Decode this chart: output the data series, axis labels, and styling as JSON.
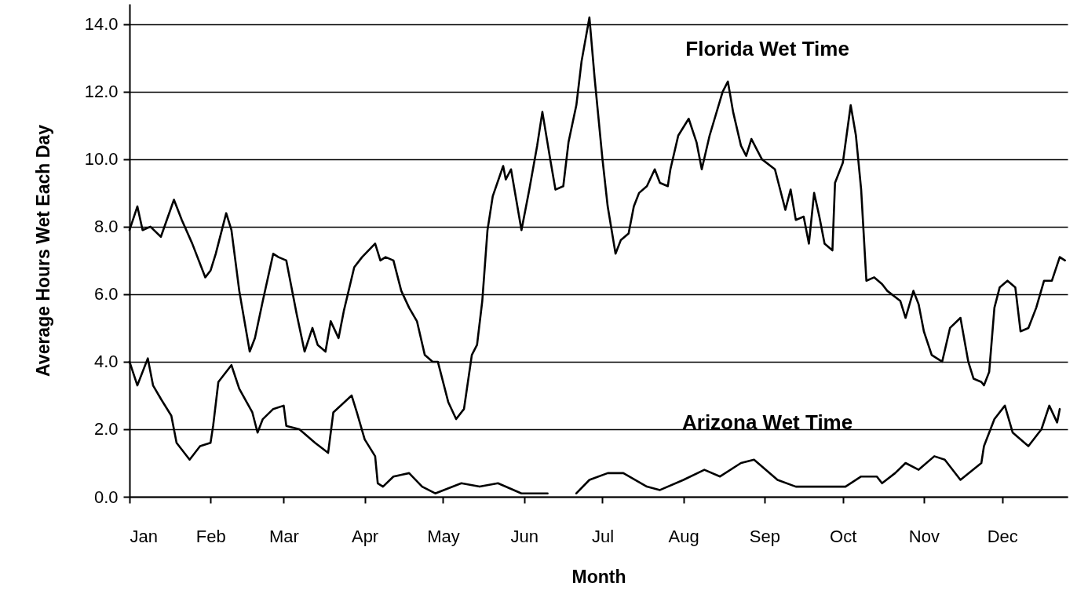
{
  "chart_data": {
    "type": "line",
    "xlabel": "Month",
    "ylabel": "Average Hours Wet Each Day",
    "xlim": [
      "--01-01",
      "--12-26"
    ],
    "ylim": [
      0,
      14.6
    ],
    "xticks": [
      {
        "value": "--01-01",
        "label": "Jan"
      },
      {
        "value": "--02-01",
        "label": "Feb"
      },
      {
        "value": "--03-01",
        "label": "Mar"
      },
      {
        "value": "--04-01",
        "label": "Apr"
      },
      {
        "value": "--05-01",
        "label": "May"
      },
      {
        "value": "--06-01",
        "label": "Jun"
      },
      {
        "value": "--07-01",
        "label": "Jul"
      },
      {
        "value": "--08-01",
        "label": "Aug"
      },
      {
        "value": "--09-01",
        "label": "Sep"
      },
      {
        "value": "--10-01",
        "label": "Oct"
      },
      {
        "value": "--11-01",
        "label": "Nov"
      },
      {
        "value": "--12-01",
        "label": "Dec"
      }
    ],
    "yticks": [
      {
        "value": 0,
        "label": "0.0"
      },
      {
        "value": 2,
        "label": "2.0"
      },
      {
        "value": 4,
        "label": "4.0"
      },
      {
        "value": 6,
        "label": "6.0"
      },
      {
        "value": 8,
        "label": "8.0"
      },
      {
        "value": 10,
        "label": "10.0"
      },
      {
        "value": 12,
        "label": "12.0"
      },
      {
        "value": 14,
        "label": "14.0"
      }
    ],
    "grid": "y",
    "series": [
      {
        "name": "Florida Wet Time",
        "color": "#000000",
        "x": [
          "--01-01",
          "--01-04",
          "--01-06",
          "--01-09",
          "--01-13",
          "--01-18",
          "--01-21",
          "--01-25",
          "--01-30",
          "--02-01",
          "--02-03",
          "--02-07",
          "--02-09",
          "--02-12",
          "--02-16",
          "--02-18",
          "--02-21",
          "--02-25",
          "--02-27",
          "--03-02",
          "--03-06",
          "--03-09",
          "--03-12",
          "--03-14",
          "--03-17",
          "--03-19",
          "--03-22",
          "--03-24",
          "--03-28",
          "--03-31",
          "--04-05",
          "--04-07",
          "--04-09",
          "--04-12",
          "--04-15",
          "--04-18",
          "--04-21",
          "--04-24",
          "--04-27",
          "--04-29",
          "--05-03",
          "--05-06",
          "--05-09",
          "--05-12",
          "--05-14",
          "--05-16",
          "--05-18",
          "--05-20",
          "--05-24",
          "--05-25",
          "--05-27",
          "--05-31",
          "--06-03",
          "--06-06",
          "--06-08",
          "--06-11",
          "--06-13",
          "--06-16",
          "--06-18",
          "--06-21",
          "--06-23",
          "--06-26",
          "--06-28",
          "--07-01",
          "--07-03",
          "--07-06",
          "--07-08",
          "--07-11",
          "--07-13",
          "--07-15",
          "--07-18",
          "--07-21",
          "--07-23",
          "--07-26",
          "--07-27",
          "--07-30",
          "--08-03",
          "--08-06",
          "--08-08",
          "--08-11",
          "--08-16",
          "--08-18",
          "--08-20",
          "--08-23",
          "--08-25",
          "--08-27",
          "--08-31",
          "--09-05",
          "--09-09",
          "--09-11",
          "--09-13",
          "--09-16",
          "--09-18",
          "--09-20",
          "--09-22",
          "--09-24",
          "--09-27",
          "--09-28",
          "--10-01",
          "--10-04",
          "--10-06",
          "--10-08",
          "--10-10",
          "--10-13",
          "--10-16",
          "--10-18",
          "--10-23",
          "--10-25",
          "--10-28",
          "--10-30",
          "--11-01",
          "--11-04",
          "--11-08",
          "--11-11",
          "--11-15",
          "--11-18",
          "--11-20",
          "--11-23",
          "--11-24",
          "--11-26",
          "--11-28",
          "--11-30",
          "--12-03",
          "--12-06",
          "--12-08",
          "--12-11",
          "--12-14",
          "--12-17",
          "--12-20",
          "--12-23",
          "--12-25"
        ],
        "values": [
          7.9,
          8.6,
          7.9,
          8.0,
          7.7,
          8.8,
          8.2,
          7.5,
          6.5,
          6.7,
          7.2,
          8.4,
          7.9,
          6.1,
          4.3,
          4.7,
          5.8,
          7.2,
          7.1,
          7.0,
          5.4,
          4.3,
          5.0,
          4.5,
          4.3,
          5.2,
          4.7,
          5.5,
          6.8,
          7.1,
          7.5,
          7.0,
          7.1,
          7.0,
          6.1,
          5.6,
          5.2,
          4.2,
          4.0,
          4.0,
          2.8,
          2.3,
          2.6,
          4.2,
          4.5,
          5.8,
          7.9,
          8.9,
          9.8,
          9.4,
          9.7,
          7.9,
          9.1,
          10.4,
          11.4,
          10.0,
          9.1,
          9.2,
          10.5,
          11.6,
          12.9,
          14.2,
          12.4,
          10.0,
          8.6,
          7.2,
          7.6,
          7.8,
          8.6,
          9.0,
          9.2,
          9.7,
          9.3,
          9.2,
          9.7,
          10.7,
          11.2,
          10.5,
          9.7,
          10.7,
          12.0,
          12.3,
          11.4,
          10.4,
          10.1,
          10.6,
          10.0,
          9.7,
          8.5,
          9.1,
          8.2,
          8.3,
          7.5,
          9.0,
          8.3,
          7.5,
          7.3,
          9.3,
          9.9,
          11.6,
          10.7,
          9.1,
          6.4,
          6.5,
          6.3,
          6.1,
          5.8,
          5.3,
          6.1,
          5.7,
          4.9,
          4.2,
          4.0,
          5.0,
          5.3,
          4.0,
          3.5,
          3.4,
          3.3,
          3.7,
          5.6,
          6.2,
          6.4,
          6.2,
          4.9,
          5.0,
          5.6,
          6.4,
          6.4,
          7.1,
          7.0
        ]
      },
      {
        "name": "Arizona Wet Time",
        "color": "#000000",
        "x": [
          "--01-01",
          "--01-04",
          "--01-08",
          "--01-10",
          "--01-13",
          "--01-17",
          "--01-19",
          "--01-24",
          "--01-28",
          "--02-01",
          "--02-02",
          "--02-04",
          "--02-09",
          "--02-12",
          "--02-17",
          "--02-19",
          "--02-21",
          "--02-25",
          "--03-01",
          "--03-02",
          "--03-07",
          "--03-13",
          "--03-18",
          "--03-20",
          "--03-27",
          "--03-29",
          "--04-01",
          "--04-05",
          "--04-06",
          "--04-08",
          "--04-12",
          "--04-18",
          "--04-23",
          "--04-28",
          "--05-08",
          "--05-15",
          "--05-22",
          "--05-31",
          "--06-10",
          "--06-18",
          "--06-21",
          "--06-26",
          "--07-03",
          "--07-09",
          "--07-18",
          "--07-23",
          "--08-01",
          "--08-09",
          "--08-15",
          "--08-23",
          "--08-28",
          "--09-06",
          "--09-13",
          "--09-23",
          "--10-02",
          "--10-08",
          "--10-14",
          "--10-16",
          "--10-21",
          "--10-25",
          "--10-30",
          "--11-05",
          "--11-09",
          "--11-15",
          "--11-23",
          "--11-24",
          "--11-28",
          "--12-02",
          "--12-05",
          "--12-11",
          "--12-16",
          "--12-19",
          "--12-22",
          "--12-23"
        ],
        "values": [
          4.0,
          3.3,
          4.1,
          3.3,
          2.9,
          2.4,
          1.6,
          1.1,
          1.5,
          1.6,
          2.1,
          3.4,
          3.9,
          3.2,
          2.5,
          1.9,
          2.3,
          2.6,
          2.7,
          2.1,
          2.0,
          1.6,
          1.3,
          2.5,
          3.0,
          2.5,
          1.7,
          1.2,
          0.4,
          0.3,
          0.6,
          0.7,
          0.3,
          0.1,
          0.4,
          0.3,
          0.4,
          0.1,
          0.1,
          null,
          0.1,
          0.5,
          0.7,
          0.7,
          0.3,
          0.2,
          0.5,
          0.8,
          0.6,
          1.0,
          1.1,
          0.5,
          0.3,
          0.3,
          0.3,
          0.6,
          0.6,
          0.4,
          0.7,
          1.0,
          0.8,
          1.2,
          1.1,
          0.5,
          1.0,
          1.5,
          2.3,
          2.7,
          1.9,
          1.5,
          2.0,
          2.7,
          2.2,
          2.6
        ]
      }
    ]
  }
}
